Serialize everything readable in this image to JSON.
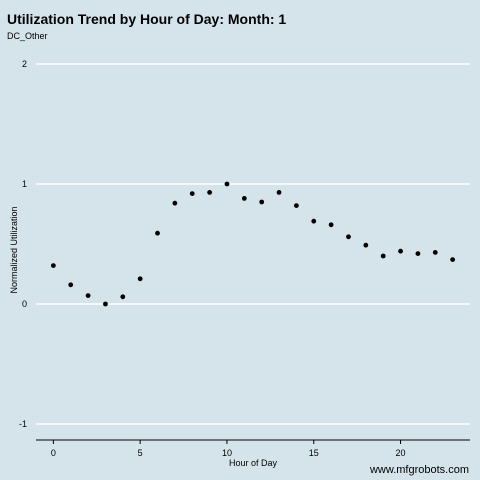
{
  "chart_data": {
    "type": "scatter",
    "title": "Utilization Trend by Hour of Day: Month: 1",
    "subtitle": "DC_Other",
    "xlabel": "Hour of Day",
    "ylabel": "Normalized Utilization",
    "xlim": [
      -1,
      24
    ],
    "ylim": [
      -1.1,
      2.05
    ],
    "xticks": [
      0,
      5,
      10,
      15,
      20
    ],
    "yticks": [
      -1,
      0,
      1,
      2
    ],
    "grid": "horizontal",
    "series": [
      {
        "x": [
          0,
          1,
          2,
          3,
          4,
          5,
          6,
          7,
          8,
          9,
          10,
          11,
          12,
          13,
          14,
          15,
          16,
          17,
          18,
          19,
          20,
          21,
          22,
          23
        ],
        "values": [
          0.32,
          0.16,
          0.07,
          0.0,
          0.06,
          0.21,
          0.59,
          0.84,
          0.92,
          0.93,
          1.0,
          0.88,
          0.85,
          0.93,
          0.82,
          0.69,
          0.66,
          0.56,
          0.49,
          0.4,
          0.44,
          0.42,
          0.43,
          0.37
        ]
      }
    ]
  },
  "watermark": "www.mfgrobots.com",
  "colors": {
    "background": "#d5e4eb",
    "grid": "#ffffff",
    "points": "#000000"
  }
}
